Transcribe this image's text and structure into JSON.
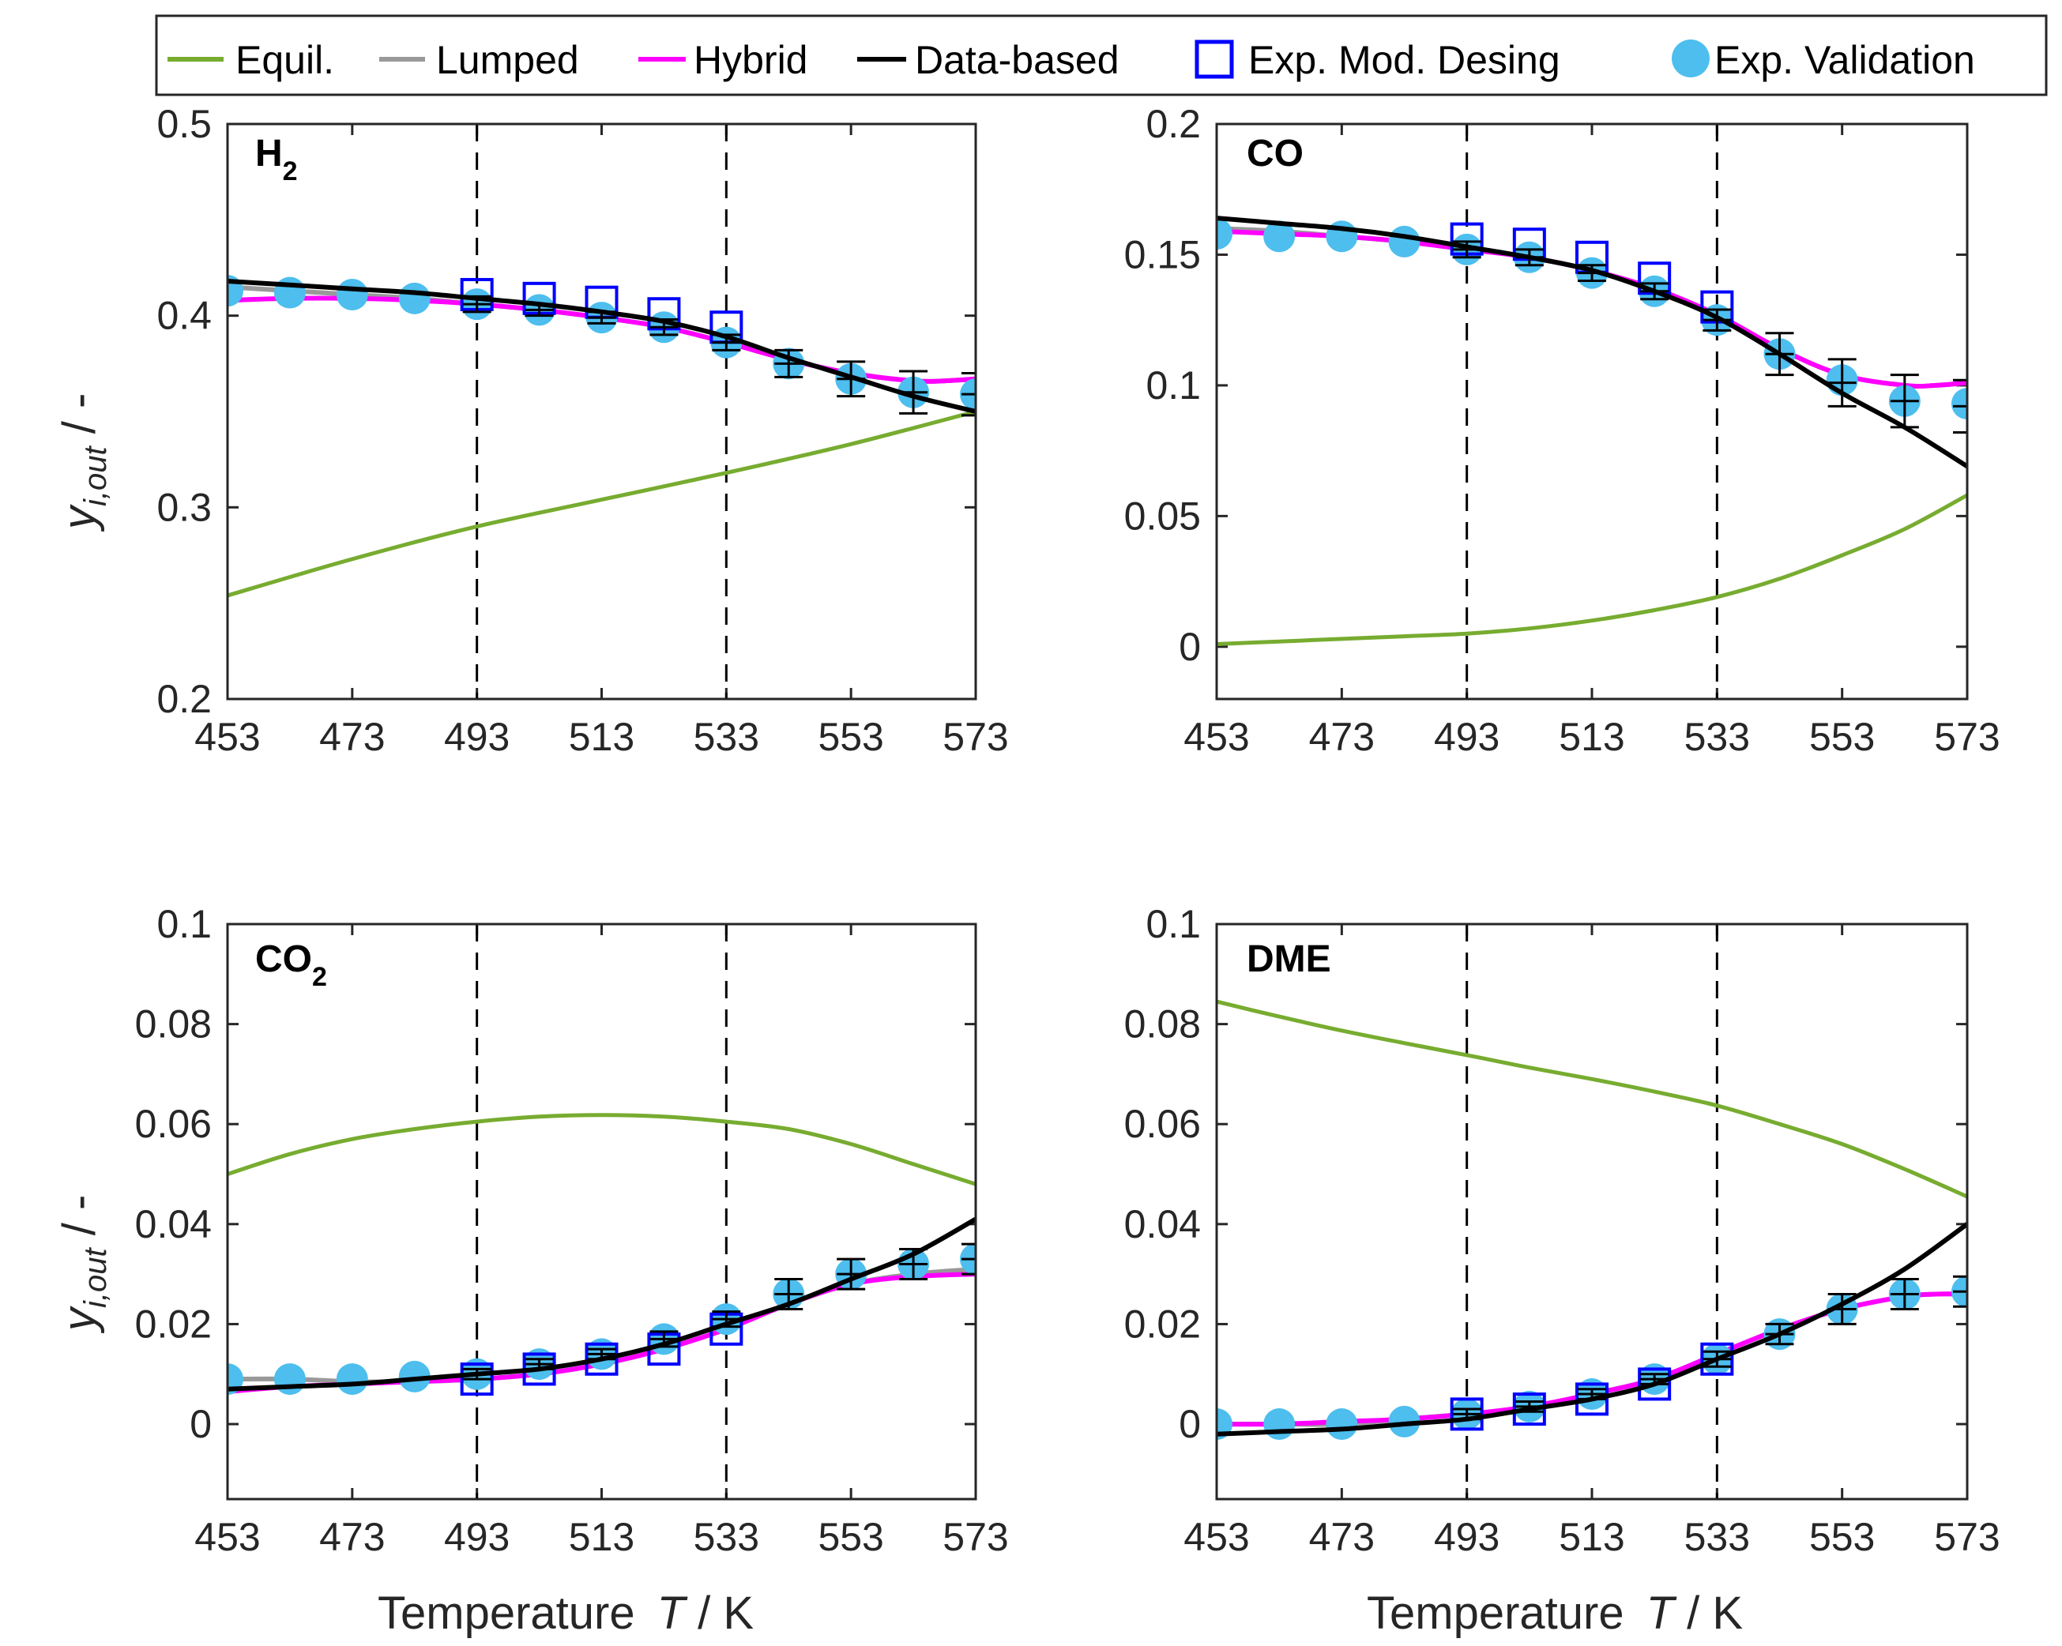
{
  "legend": {
    "items": [
      {
        "label": "Equil.",
        "kind": "line",
        "color": "#77AC30"
      },
      {
        "label": "Lumped",
        "kind": "line",
        "color": "#999999"
      },
      {
        "label": "Hybrid",
        "kind": "line",
        "color": "#FF00FF"
      },
      {
        "label": "Data-based",
        "kind": "line",
        "color": "#000000"
      },
      {
        "label": "Exp. Mod. Desing",
        "kind": "square",
        "color": "#0000FF"
      },
      {
        "label": "Exp. Validation",
        "kind": "circle",
        "color": "#4DBEEE"
      }
    ]
  },
  "shared": {
    "xlabel_prefix": "Temperature",
    "xlabel_var": "T",
    "xlabel_unit": " / K",
    "ylabel_main": "y",
    "ylabel_sub": "i,out",
    "ylabel_unit": " / -",
    "vlines": [
      493,
      533
    ]
  },
  "chart_data": [
    {
      "type": "line",
      "panel": "H2",
      "label_main": "H",
      "label_sub": "2",
      "xlim": [
        453,
        573
      ],
      "ylim": [
        0.2,
        0.5
      ],
      "xticks": [
        "453",
        "473",
        "493",
        "513",
        "533",
        "553",
        "573"
      ],
      "yticks": [
        "0.2",
        "0.3",
        "0.4",
        "0.5"
      ],
      "series": {
        "equil": {
          "x": [
            453,
            473,
            493,
            513,
            533,
            553,
            573
          ],
          "y": [
            0.254,
            0.273,
            0.29,
            0.304,
            0.318,
            0.333,
            0.35
          ]
        },
        "lumped": {
          "x": [
            453,
            463,
            473,
            483,
            493,
            503,
            513,
            523,
            533,
            543,
            553,
            563,
            568,
            573
          ],
          "y": [
            0.415,
            0.413,
            0.411,
            0.409,
            0.406,
            0.403,
            0.399,
            0.394,
            0.386,
            0.377,
            0.37,
            0.366,
            0.366,
            0.367
          ]
        },
        "hybrid": {
          "x": [
            453,
            463,
            473,
            483,
            493,
            503,
            513,
            523,
            533,
            543,
            553,
            563,
            568,
            573
          ],
          "y": [
            0.408,
            0.409,
            0.409,
            0.408,
            0.406,
            0.403,
            0.399,
            0.394,
            0.386,
            0.377,
            0.37,
            0.366,
            0.366,
            0.367
          ]
        },
        "databased": {
          "x": [
            453,
            463,
            473,
            483,
            493,
            503,
            513,
            523,
            533,
            543,
            553,
            563,
            573
          ],
          "y": [
            0.418,
            0.416,
            0.414,
            0.412,
            0.409,
            0.406,
            0.402,
            0.397,
            0.389,
            0.378,
            0.368,
            0.358,
            0.35
          ]
        },
        "exp_design": {
          "x": [
            493,
            503,
            513,
            523,
            533
          ],
          "y": [
            0.411,
            0.409,
            0.407,
            0.401,
            0.394
          ]
        },
        "exp_validation": {
          "x": [
            453,
            463,
            473,
            483,
            493,
            503,
            513,
            523,
            533,
            543,
            553,
            563,
            573
          ],
          "y": [
            0.413,
            0.412,
            0.411,
            0.409,
            0.406,
            0.403,
            0.399,
            0.394,
            0.386,
            0.375,
            0.367,
            0.36,
            0.359
          ]
        },
        "errorbars": {
          "x": [
            493,
            503,
            513,
            523,
            533,
            543,
            553,
            563,
            573
          ],
          "y": [
            0.406,
            0.403,
            0.399,
            0.394,
            0.386,
            0.375,
            0.367,
            0.36,
            0.359
          ],
          "err": [
            0.004,
            0.003,
            0.003,
            0.004,
            0.004,
            0.007,
            0.009,
            0.011,
            0.011
          ]
        }
      }
    },
    {
      "type": "line",
      "panel": "CO",
      "label_main": "CO",
      "label_sub": "",
      "xlim": [
        453,
        573
      ],
      "ylim": [
        -0.02,
        0.2
      ],
      "xticks": [
        "453",
        "473",
        "493",
        "513",
        "533",
        "553",
        "573"
      ],
      "yticks": [
        "0",
        "0.05",
        "0.1",
        "0.15",
        "0.2"
      ],
      "series": {
        "equil": {
          "x": [
            453,
            463,
            473,
            483,
            493,
            503,
            513,
            523,
            533,
            543,
            553,
            563,
            573
          ],
          "y": [
            0.001,
            0.002,
            0.003,
            0.004,
            0.005,
            0.007,
            0.01,
            0.014,
            0.019,
            0.026,
            0.035,
            0.045,
            0.058
          ]
        },
        "lumped": {
          "x": [
            453,
            463,
            473,
            483,
            493,
            503,
            513,
            523,
            533,
            543,
            553,
            563,
            568,
            573
          ],
          "y": [
            0.16,
            0.159,
            0.157,
            0.155,
            0.152,
            0.149,
            0.144,
            0.137,
            0.127,
            0.114,
            0.104,
            0.1,
            0.1,
            0.101
          ]
        },
        "hybrid": {
          "x": [
            453,
            463,
            473,
            483,
            493,
            503,
            513,
            523,
            533,
            543,
            553,
            563,
            568,
            573
          ],
          "y": [
            0.159,
            0.158,
            0.157,
            0.155,
            0.152,
            0.149,
            0.144,
            0.137,
            0.127,
            0.114,
            0.104,
            0.1,
            0.1,
            0.101
          ]
        },
        "databased": {
          "x": [
            453,
            463,
            473,
            483,
            493,
            503,
            513,
            523,
            533,
            543,
            553,
            563,
            573
          ],
          "y": [
            0.164,
            0.162,
            0.16,
            0.157,
            0.153,
            0.149,
            0.144,
            0.136,
            0.126,
            0.112,
            0.097,
            0.084,
            0.069
          ]
        },
        "exp_design": {
          "x": [
            493,
            503,
            513,
            523,
            533
          ],
          "y": [
            0.156,
            0.154,
            0.149,
            0.141,
            0.13
          ]
        },
        "exp_validation": {
          "x": [
            453,
            463,
            473,
            483,
            493,
            503,
            513,
            523,
            533,
            543,
            553,
            563,
            573
          ],
          "y": [
            0.158,
            0.157,
            0.157,
            0.155,
            0.152,
            0.149,
            0.143,
            0.136,
            0.125,
            0.112,
            0.102,
            0.094,
            0.093
          ]
        },
        "errorbars": {
          "x": [
            493,
            503,
            513,
            523,
            533,
            543,
            553,
            563,
            573
          ],
          "y": [
            0.152,
            0.149,
            0.143,
            0.136,
            0.125,
            0.112,
            0.101,
            0.094,
            0.092
          ],
          "err": [
            0.003,
            0.003,
            0.003,
            0.003,
            0.004,
            0.008,
            0.009,
            0.01,
            0.01
          ]
        }
      }
    },
    {
      "type": "line",
      "panel": "CO2",
      "label_main": "CO",
      "label_sub": "2",
      "xlim": [
        453,
        573
      ],
      "ylim": [
        -0.015,
        0.1
      ],
      "xticks": [
        "453",
        "473",
        "493",
        "513",
        "533",
        "553",
        "573"
      ],
      "yticks": [
        "0",
        "0.02",
        "0.04",
        "0.06",
        "0.08",
        "0.1"
      ],
      "series": {
        "equil": {
          "x": [
            453,
            463,
            473,
            483,
            493,
            503,
            513,
            523,
            533,
            543,
            553,
            563,
            573
          ],
          "y": [
            0.05,
            0.054,
            0.057,
            0.059,
            0.0605,
            0.0615,
            0.0618,
            0.0615,
            0.0605,
            0.059,
            0.056,
            0.052,
            0.048
          ]
        },
        "lumped": {
          "x": [
            453,
            463,
            473,
            483,
            493,
            503,
            513,
            523,
            533,
            543,
            553,
            563,
            573
          ],
          "y": [
            0.009,
            0.009,
            0.0085,
            0.0085,
            0.009,
            0.01,
            0.012,
            0.015,
            0.019,
            0.024,
            0.028,
            0.03,
            0.031
          ]
        },
        "hybrid": {
          "x": [
            453,
            463,
            473,
            483,
            493,
            503,
            513,
            523,
            533,
            543,
            553,
            563,
            573
          ],
          "y": [
            0.0065,
            0.0075,
            0.008,
            0.0085,
            0.009,
            0.01,
            0.012,
            0.015,
            0.019,
            0.024,
            0.028,
            0.0295,
            0.03
          ]
        },
        "databased": {
          "x": [
            453,
            463,
            473,
            483,
            493,
            503,
            513,
            523,
            533,
            543,
            553,
            563,
            573
          ],
          "y": [
            0.007,
            0.0075,
            0.008,
            0.009,
            0.01,
            0.011,
            0.013,
            0.016,
            0.02,
            0.024,
            0.029,
            0.034,
            0.041
          ]
        },
        "exp_design": {
          "x": [
            493,
            503,
            513,
            523,
            533
          ],
          "y": [
            0.009,
            0.011,
            0.013,
            0.015,
            0.019
          ]
        },
        "exp_validation": {
          "x": [
            453,
            463,
            473,
            483,
            493,
            503,
            513,
            523,
            533,
            543,
            553,
            563,
            573
          ],
          "y": [
            0.009,
            0.009,
            0.009,
            0.0095,
            0.01,
            0.012,
            0.014,
            0.017,
            0.021,
            0.026,
            0.03,
            0.032,
            0.033
          ]
        },
        "errorbars": {
          "x": [
            493,
            503,
            513,
            523,
            533,
            543,
            553,
            563,
            573
          ],
          "y": [
            0.01,
            0.012,
            0.014,
            0.017,
            0.021,
            0.026,
            0.03,
            0.032,
            0.033
          ],
          "err": [
            0.001,
            0.001,
            0.001,
            0.0015,
            0.0015,
            0.003,
            0.003,
            0.003,
            0.003
          ]
        }
      }
    },
    {
      "type": "line",
      "panel": "DME",
      "label_main": "DME",
      "label_sub": "",
      "xlim": [
        453,
        573
      ],
      "ylim": [
        -0.015,
        0.1
      ],
      "xticks": [
        "453",
        "473",
        "493",
        "513",
        "533",
        "553",
        "573"
      ],
      "yticks": [
        "0",
        "0.02",
        "0.04",
        "0.06",
        "0.08",
        "0.1"
      ],
      "series": {
        "equil": {
          "x": [
            453,
            463,
            473,
            483,
            493,
            503,
            513,
            523,
            533,
            543,
            553,
            563,
            573
          ],
          "y": [
            0.0845,
            0.0815,
            0.0787,
            0.0762,
            0.0738,
            0.0713,
            0.069,
            0.0665,
            0.0637,
            0.06,
            0.056,
            0.051,
            0.0455
          ]
        },
        "lumped": {
          "x": [
            453,
            463,
            473,
            483,
            493,
            503,
            513,
            523,
            533,
            543,
            553,
            563,
            568,
            573
          ],
          "y": [
            0.0,
            0.0,
            0.0,
            0.001,
            0.002,
            0.003,
            0.006,
            0.009,
            0.014,
            0.019,
            0.023,
            0.0255,
            0.026,
            0.026
          ]
        },
        "hybrid": {
          "x": [
            453,
            463,
            473,
            483,
            493,
            503,
            513,
            523,
            533,
            543,
            553,
            563,
            568,
            573
          ],
          "y": [
            0.0,
            0.0,
            0.0005,
            0.001,
            0.002,
            0.0035,
            0.006,
            0.009,
            0.014,
            0.019,
            0.023,
            0.0255,
            0.026,
            0.026
          ]
        },
        "databased": {
          "x": [
            453,
            463,
            473,
            483,
            493,
            503,
            513,
            523,
            533,
            543,
            553,
            563,
            573
          ],
          "y": [
            -0.002,
            -0.0015,
            -0.001,
            0.0,
            0.001,
            0.003,
            0.005,
            0.008,
            0.013,
            0.018,
            0.024,
            0.031,
            0.04
          ]
        },
        "exp_design": {
          "x": [
            493,
            503,
            513,
            523,
            533
          ],
          "y": [
            0.002,
            0.003,
            0.005,
            0.008,
            0.013
          ]
        },
        "exp_validation": {
          "x": [
            453,
            463,
            473,
            483,
            493,
            503,
            513,
            523,
            533,
            543,
            553,
            563,
            573
          ],
          "y": [
            0.0,
            0.0,
            0.0,
            0.0005,
            0.002,
            0.0035,
            0.006,
            0.009,
            0.013,
            0.018,
            0.023,
            0.026,
            0.0265
          ]
        },
        "errorbars": {
          "x": [
            493,
            503,
            513,
            523,
            533,
            543,
            553,
            563,
            573
          ],
          "y": [
            0.002,
            0.0035,
            0.006,
            0.009,
            0.013,
            0.018,
            0.023,
            0.026,
            0.0265
          ],
          "err": [
            0.001,
            0.001,
            0.001,
            0.001,
            0.0015,
            0.002,
            0.003,
            0.003,
            0.003
          ]
        }
      }
    }
  ]
}
